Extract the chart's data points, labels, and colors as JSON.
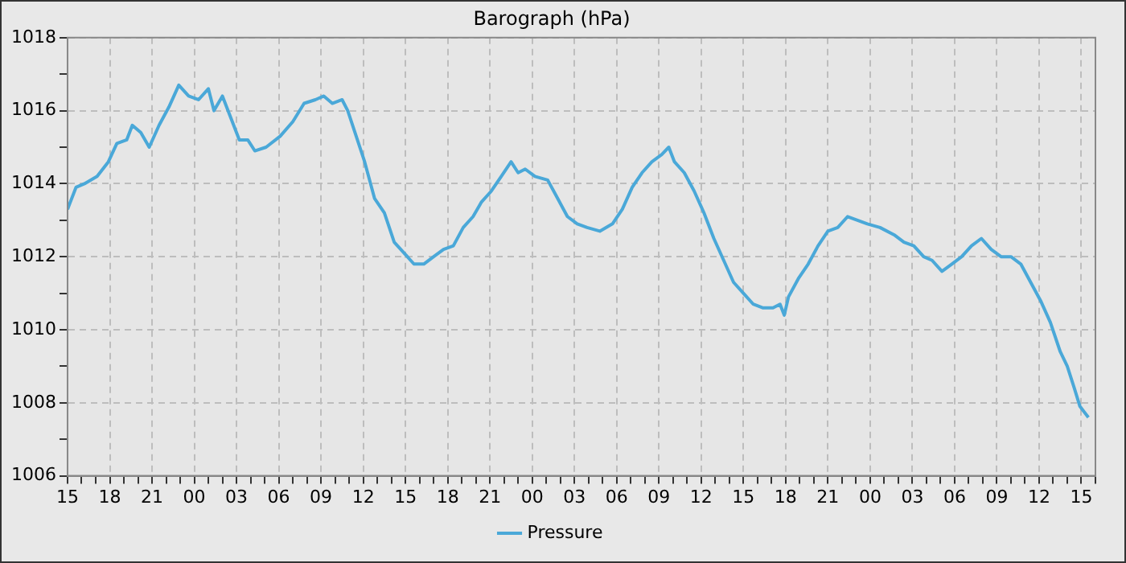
{
  "chart_data": {
    "type": "line",
    "title": "Barograph (hPa)",
    "x": [
      15.0,
      15.6,
      16.2,
      17.1,
      17.9,
      18.5,
      19.2,
      19.6,
      20.2,
      20.8,
      21.5,
      22.2,
      22.9,
      23.6,
      24.3,
      25.0,
      25.4,
      26.0,
      26.6,
      27.2,
      27.8,
      28.3,
      29.1,
      30.1,
      31.0,
      31.8,
      32.6,
      33.2,
      33.8,
      34.5,
      34.9,
      35.5,
      36.1,
      36.8,
      37.5,
      38.2,
      38.9,
      39.6,
      40.3,
      41.0,
      41.7,
      42.4,
      43.1,
      43.8,
      44.4,
      45.1,
      45.8,
      46.5,
      47.0,
      47.5,
      48.2,
      49.1,
      49.8,
      50.5,
      51.2,
      51.9,
      52.8,
      53.7,
      54.4,
      55.1,
      55.8,
      56.5,
      57.2,
      57.7,
      58.1,
      58.8,
      59.5,
      60.2,
      60.9,
      61.6,
      62.3,
      63.0,
      63.7,
      64.4,
      65.1,
      65.6,
      65.9,
      66.2,
      66.9,
      67.6,
      68.3,
      69.0,
      69.7,
      70.4,
      71.1,
      71.8,
      72.7,
      73.7,
      74.4,
      75.1,
      75.8,
      76.4,
      77.1,
      77.8,
      78.5,
      79.2,
      79.9,
      80.6,
      81.3,
      82.0,
      82.7,
      83.4,
      84.1,
      84.8,
      85.5,
      86.0,
      86.5,
      86.9,
      87.5
    ],
    "series": [
      {
        "name": "Pressure",
        "color": "#4aa8d8",
        "values": [
          1013.3,
          1013.9,
          1014.0,
          1014.2,
          1014.6,
          1015.1,
          1015.2,
          1015.6,
          1015.4,
          1015.0,
          1015.6,
          1016.1,
          1016.7,
          1016.4,
          1016.3,
          1016.6,
          1016.0,
          1016.4,
          1015.8,
          1015.2,
          1015.2,
          1014.9,
          1015.0,
          1015.3,
          1015.7,
          1016.2,
          1016.3,
          1016.4,
          1016.2,
          1016.3,
          1016.0,
          1015.3,
          1014.6,
          1013.6,
          1013.2,
          1012.4,
          1012.1,
          1011.8,
          1011.8,
          1012.0,
          1012.2,
          1012.3,
          1012.8,
          1013.1,
          1013.5,
          1013.8,
          1014.2,
          1014.6,
          1014.3,
          1014.4,
          1014.2,
          1014.1,
          1013.6,
          1013.1,
          1012.9,
          1012.8,
          1012.7,
          1012.9,
          1013.3,
          1013.9,
          1014.3,
          1014.6,
          1014.8,
          1015.0,
          1014.6,
          1014.3,
          1013.8,
          1013.2,
          1012.5,
          1011.9,
          1011.3,
          1011.0,
          1010.7,
          1010.6,
          1010.6,
          1010.7,
          1010.4,
          1010.9,
          1011.4,
          1011.8,
          1012.3,
          1012.7,
          1012.8,
          1013.1,
          1013.0,
          1012.9,
          1012.8,
          1012.6,
          1012.4,
          1012.3,
          1012.0,
          1011.9,
          1011.6,
          1011.8,
          1012.0,
          1012.3,
          1012.5,
          1012.2,
          1012.0,
          1012.0,
          1011.8,
          1011.3,
          1010.8,
          1010.2,
          1009.4,
          1009.0,
          1008.4,
          1007.9,
          1007.6
        ]
      }
    ],
    "xlim": [
      15,
      88
    ],
    "xticks": [
      15,
      {
        "value": 16,
        "label": null
      },
      {
        "value": 17,
        "label": null
      },
      18,
      {
        "value": 19,
        "label": null
      },
      {
        "value": 20,
        "label": null
      },
      21,
      {
        "value": 22,
        "label": null
      },
      {
        "value": 23,
        "label": null
      },
      {
        "value": 24,
        "label": "00"
      },
      {
        "value": 25,
        "label": null
      },
      {
        "value": 26,
        "label": null
      },
      {
        "value": 27,
        "label": "03"
      },
      {
        "value": 28,
        "label": null
      },
      {
        "value": 29,
        "label": null
      },
      {
        "value": 30,
        "label": "06"
      },
      {
        "value": 31,
        "label": null
      },
      {
        "value": 32,
        "label": null
      },
      {
        "value": 33,
        "label": "09"
      },
      {
        "value": 34,
        "label": null
      },
      {
        "value": 35,
        "label": null
      },
      {
        "value": 36,
        "label": "12"
      },
      {
        "value": 37,
        "label": null
      },
      {
        "value": 38,
        "label": null
      },
      {
        "value": 39,
        "label": "15"
      },
      {
        "value": 40,
        "label": null
      },
      {
        "value": 41,
        "label": null
      },
      {
        "value": 42,
        "label": "18"
      },
      {
        "value": 43,
        "label": null
      },
      {
        "value": 44,
        "label": null
      },
      {
        "value": 45,
        "label": "21"
      },
      {
        "value": 46,
        "label": null
      },
      {
        "value": 47,
        "label": null
      },
      {
        "value": 48,
        "label": "00"
      },
      {
        "value": 49,
        "label": null
      },
      {
        "value": 50,
        "label": null
      },
      {
        "value": 51,
        "label": "03"
      },
      {
        "value": 52,
        "label": null
      },
      {
        "value": 53,
        "label": null
      },
      {
        "value": 54,
        "label": "06"
      },
      {
        "value": 55,
        "label": null
      },
      {
        "value": 56,
        "label": null
      },
      {
        "value": 57,
        "label": "09"
      },
      {
        "value": 58,
        "label": null
      },
      {
        "value": 59,
        "label": null
      },
      {
        "value": 60,
        "label": "12"
      },
      {
        "value": 61,
        "label": null
      },
      {
        "value": 62,
        "label": null
      },
      {
        "value": 63,
        "label": "15"
      },
      {
        "value": 64,
        "label": null
      },
      {
        "value": 65,
        "label": null
      },
      {
        "value": 66,
        "label": "18"
      },
      {
        "value": 67,
        "label": null
      },
      {
        "value": 68,
        "label": null
      },
      {
        "value": 69,
        "label": "21"
      },
      {
        "value": 70,
        "label": null
      },
      {
        "value": 71,
        "label": null
      },
      {
        "value": 72,
        "label": "00"
      },
      {
        "value": 73,
        "label": null
      },
      {
        "value": 74,
        "label": null
      },
      {
        "value": 75,
        "label": "03"
      },
      {
        "value": 76,
        "label": null
      },
      {
        "value": 77,
        "label": null
      },
      {
        "value": 78,
        "label": "06"
      },
      {
        "value": 79,
        "label": null
      },
      {
        "value": 80,
        "label": null
      },
      {
        "value": 81,
        "label": "09"
      },
      {
        "value": 82,
        "label": null
      },
      {
        "value": 83,
        "label": null
      },
      {
        "value": 84,
        "label": "12"
      },
      {
        "value": 85,
        "label": null
      },
      {
        "value": 86,
        "label": null
      },
      {
        "value": 87,
        "label": "15"
      },
      {
        "value": 88,
        "label": null
      }
    ],
    "ylim": [
      1006,
      1018
    ],
    "yticks": [
      1006,
      {
        "value": 1007,
        "label": null
      },
      1008,
      {
        "value": 1009,
        "label": null
      },
      1010,
      {
        "value": 1011,
        "label": null
      },
      1012,
      {
        "value": 1013,
        "label": null
      },
      1014,
      {
        "value": 1015,
        "label": null
      },
      1016,
      {
        "value": 1017,
        "label": null
      },
      1018
    ],
    "grid": true,
    "legend": "bottom",
    "marker": "none",
    "line_style": "solid"
  }
}
